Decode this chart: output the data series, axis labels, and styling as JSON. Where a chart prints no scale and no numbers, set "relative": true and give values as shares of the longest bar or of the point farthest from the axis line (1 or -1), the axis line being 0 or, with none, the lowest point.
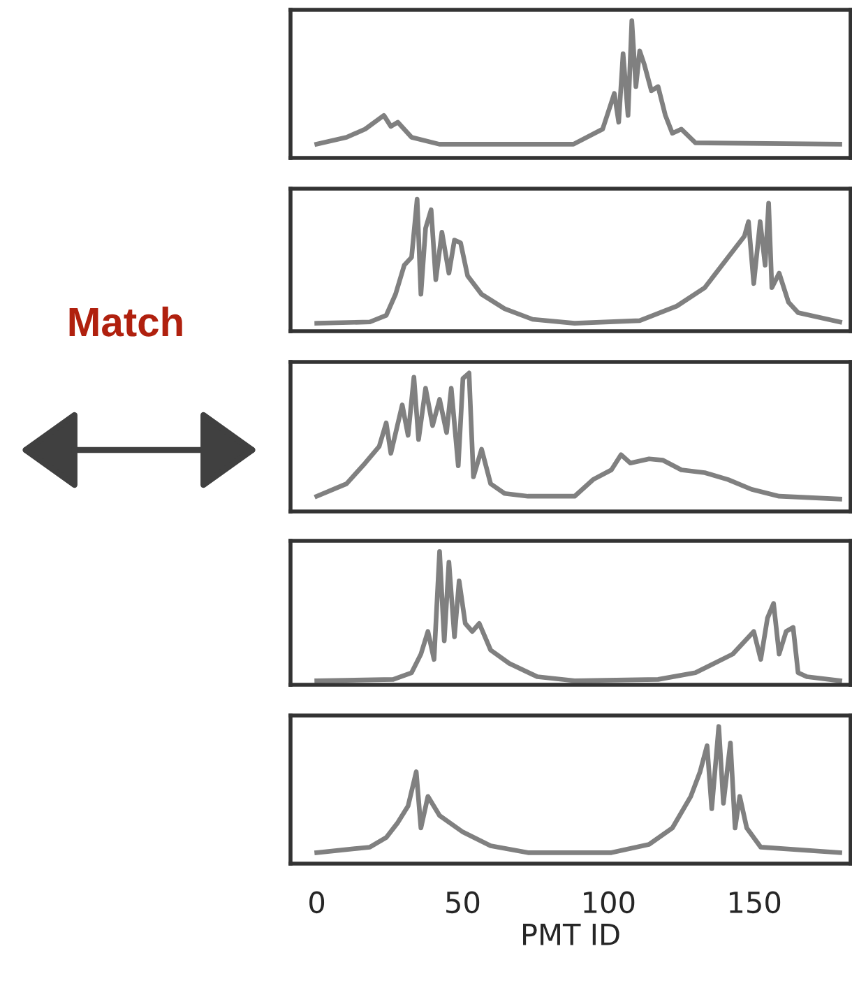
{
  "chart_data": [
    {
      "type": "line",
      "relative": true,
      "xlim": [
        -9,
        183
      ],
      "tick_labels": false,
      "grid": false,
      "legend": false,
      "marker": "none",
      "line_style": "solid",
      "series": [
        {
          "color": "#808080",
          "x": [
            0,
            10.2,
            16.6,
            23,
            25.4,
            27.8,
            32.5,
            42,
            88,
            98,
            102,
            103.5,
            105,
            106.7,
            108,
            109.4,
            110.7,
            112.3,
            114.7,
            117,
            119.5,
            121.9,
            125,
            129.8,
            179.3
          ],
          "values": [
            0.1,
            0.15,
            0.21,
            0.31,
            0.23,
            0.26,
            0.15,
            0.1,
            0.1,
            0.21,
            0.47,
            0.26,
            0.76,
            0.31,
            1,
            0.52,
            0.78,
            0.68,
            0.49,
            0.52,
            0.31,
            0.18,
            0.21,
            0.11,
            0.1
          ]
        }
      ]
    },
    {
      "type": "line",
      "relative": true,
      "xlim": [
        -9,
        183
      ],
      "tick_labels": false,
      "grid": false,
      "legend": false,
      "marker": "none",
      "line_style": "solid",
      "series": [
        {
          "color": "#808080",
          "x": [
            0,
            18.2,
            23.8,
            27,
            30,
            32.5,
            34.4,
            35.7,
            37.3,
            39.2,
            40.8,
            42.9,
            45.3,
            47.2,
            49.3,
            51.7,
            56.5,
            64.4,
            74,
            88.4,
            110.7,
            123.4,
            133,
            141,
            146.6,
            148,
            149.8,
            152,
            153.7,
            154.9,
            156,
            158.5,
            161.7,
            165,
            179.3
          ],
          "values": [
            0.06,
            0.07,
            0.12,
            0.28,
            0.5,
            0.56,
            1,
            0.28,
            0.78,
            0.92,
            0.39,
            0.75,
            0.44,
            0.69,
            0.67,
            0.42,
            0.28,
            0.17,
            0.09,
            0.06,
            0.08,
            0.19,
            0.33,
            0.56,
            0.72,
            0.83,
            0.36,
            0.83,
            0.5,
            0.97,
            0.33,
            0.44,
            0.22,
            0.14,
            0.07
          ]
        }
      ]
    },
    {
      "type": "line",
      "relative": true,
      "xlim": [
        -9,
        183
      ],
      "tick_labels": false,
      "grid": false,
      "legend": false,
      "marker": "none",
      "line_style": "solid",
      "annotations": [
        "Match"
      ],
      "series": [
        {
          "color": "#808080",
          "x": [
            0,
            10.2,
            16.6,
            21.4,
            23.8,
            25.4,
            29.3,
            31.3,
            33.3,
            34.9,
            37.3,
            39.7,
            42.1,
            44.5,
            46.1,
            48.5,
            50.1,
            52.2,
            53.7,
            56.5,
            59.6,
            64.4,
            72.4,
            88.4,
            94.7,
            101,
            104.3,
            107.5,
            113.9,
            118.7,
            125,
            133,
            141,
            149,
            158.5,
            179.3
          ],
          "values": [
            0.11,
            0.2,
            0.35,
            0.47,
            0.64,
            0.42,
            0.77,
            0.55,
            0.97,
            0.52,
            0.89,
            0.62,
            0.81,
            0.57,
            0.89,
            0.33,
            0.96,
            1,
            0.25,
            0.45,
            0.2,
            0.13,
            0.11,
            0.11,
            0.23,
            0.3,
            0.41,
            0.35,
            0.38,
            0.37,
            0.3,
            0.28,
            0.23,
            0.16,
            0.11,
            0.09
          ]
        }
      ]
    },
    {
      "type": "line",
      "relative": true,
      "xlim": [
        -9,
        183
      ],
      "tick_labels": false,
      "grid": false,
      "legend": false,
      "marker": "none",
      "line_style": "solid",
      "series": [
        {
          "color": "#808080",
          "x": [
            0,
            26.2,
            32.5,
            35.7,
            38.1,
            40.2,
            42.1,
            43.7,
            45.3,
            47.2,
            48.8,
            50.9,
            53.3,
            55.7,
            59.6,
            66,
            75.6,
            88.4,
            117,
            129.8,
            142.6,
            149.8,
            152.2,
            154.5,
            156.6,
            158.5,
            160.9,
            163.3,
            165,
            168,
            179.3
          ],
          "values": [
            0.03,
            0.04,
            0.09,
            0.23,
            0.4,
            0.19,
            1,
            0.33,
            0.92,
            0.36,
            0.78,
            0.46,
            0.4,
            0.46,
            0.26,
            0.16,
            0.06,
            0.03,
            0.04,
            0.09,
            0.23,
            0.4,
            0.19,
            0.5,
            0.61,
            0.23,
            0.4,
            0.43,
            0.09,
            0.06,
            0.03
          ]
        }
      ]
    },
    {
      "type": "line",
      "relative": true,
      "xlim": [
        -9,
        183
      ],
      "xticks": [
        0,
        50,
        100,
        150
      ],
      "xlabel": "PMT ID",
      "tick_labels": "x",
      "grid": false,
      "legend": false,
      "marker": "none",
      "line_style": "solid",
      "series": [
        {
          "color": "#808080",
          "x": [
            0,
            18.2,
            23.8,
            27.8,
            31.3,
            34.1,
            35.7,
            38.1,
            42.1,
            50.1,
            59.6,
            72.4,
            101,
            113.9,
            121.9,
            128.2,
            131.4,
            133.8,
            135.4,
            137.8,
            139.4,
            141.8,
            143.4,
            145,
            147.4,
            152.2,
            179.3
          ],
          "values": [
            0.08,
            0.12,
            0.19,
            0.3,
            0.42,
            0.67,
            0.26,
            0.49,
            0.35,
            0.23,
            0.13,
            0.08,
            0.08,
            0.14,
            0.26,
            0.49,
            0.67,
            0.86,
            0.4,
            1,
            0.44,
            0.88,
            0.26,
            0.49,
            0.26,
            0.12,
            0.08
          ]
        }
      ]
    }
  ]
}
